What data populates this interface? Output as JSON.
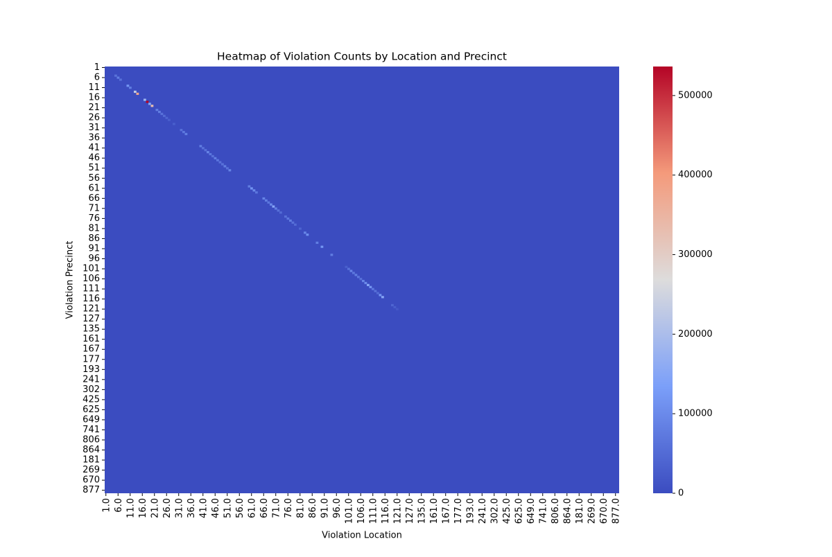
{
  "chart_data": {
    "type": "heatmap",
    "title": "Heatmap of Violation Counts by Location and Precinct",
    "x_label": "Violation Location",
    "y_label": "Violation Precinct",
    "x_categories": [
      "1.0",
      null,
      null,
      null,
      null,
      "6.0",
      null,
      null,
      null,
      null,
      "11.0",
      null,
      null,
      null,
      null,
      "16.0",
      null,
      null,
      null,
      null,
      "21.0",
      null,
      null,
      null,
      null,
      "26.0",
      null,
      null,
      null,
      null,
      "31.0",
      null,
      null,
      null,
      null,
      "36.0",
      null,
      null,
      null,
      null,
      "41.0",
      null,
      null,
      null,
      null,
      "46.0",
      null,
      null,
      null,
      null,
      "51.0",
      null,
      null,
      null,
      null,
      "56.0",
      null,
      null,
      null,
      null,
      "61.0",
      null,
      null,
      null,
      null,
      "66.0",
      null,
      null,
      null,
      null,
      "71.0",
      null,
      null,
      null,
      null,
      "76.0",
      null,
      null,
      null,
      null,
      "81.0",
      null,
      null,
      null,
      null,
      "86.0",
      null,
      null,
      null,
      null,
      "91.0",
      null,
      null,
      null,
      null,
      "96.0",
      null,
      null,
      null,
      null,
      "101.0",
      null,
      null,
      null,
      null,
      "106.0",
      null,
      null,
      null,
      null,
      "111.0",
      null,
      null,
      null,
      null,
      "116.0",
      null,
      null,
      null,
      null,
      "121.0",
      null,
      null,
      null,
      null,
      "127.0",
      null,
      null,
      null,
      null,
      "135.0",
      null,
      null,
      null,
      null,
      "161.0",
      null,
      null,
      null,
      null,
      "167.0",
      null,
      null,
      null,
      null,
      "177.0",
      null,
      null,
      null,
      null,
      "193.0",
      null,
      null,
      null,
      null,
      "241.0",
      null,
      null,
      null,
      null,
      "302.0",
      null,
      null,
      null,
      null,
      "425.0",
      null,
      null,
      null,
      null,
      "625.0",
      null,
      null,
      null,
      null,
      "649.0",
      null,
      null,
      null,
      null,
      "741.0",
      null,
      null,
      null,
      null,
      "806.0",
      null,
      null,
      null,
      null,
      "864.0",
      null,
      null,
      null,
      null,
      "181.0",
      null,
      null,
      null,
      null,
      "269.0",
      null,
      null,
      null,
      null,
      "670.0",
      null,
      null,
      null,
      null,
      "877.0",
      null
    ],
    "y_categories": [
      "1",
      null,
      null,
      null,
      null,
      "6",
      null,
      null,
      null,
      null,
      "11",
      null,
      null,
      null,
      null,
      "16",
      null,
      null,
      null,
      null,
      "21",
      null,
      null,
      null,
      null,
      "26",
      null,
      null,
      null,
      null,
      "31",
      null,
      null,
      null,
      null,
      "36",
      null,
      null,
      null,
      null,
      "41",
      null,
      null,
      null,
      null,
      "46",
      null,
      null,
      null,
      null,
      "51",
      null,
      null,
      null,
      null,
      "56",
      null,
      null,
      null,
      null,
      "61",
      null,
      null,
      null,
      null,
      "66",
      null,
      null,
      null,
      null,
      "71",
      null,
      null,
      null,
      null,
      "76",
      null,
      null,
      null,
      null,
      "81",
      null,
      null,
      null,
      null,
      "86",
      null,
      null,
      null,
      null,
      "91",
      null,
      null,
      null,
      null,
      "96",
      null,
      null,
      null,
      null,
      "101",
      null,
      null,
      null,
      null,
      "106",
      null,
      null,
      null,
      null,
      "111",
      null,
      null,
      null,
      null,
      "116",
      null,
      null,
      null,
      null,
      "121",
      null,
      null,
      null,
      null,
      "127",
      null,
      null,
      null,
      null,
      "135",
      null,
      null,
      null,
      null,
      "161",
      null,
      null,
      null,
      null,
      "167",
      null,
      null,
      null,
      null,
      "177",
      null,
      null,
      null,
      null,
      "193",
      null,
      null,
      null,
      null,
      "241",
      null,
      null,
      null,
      null,
      "302",
      null,
      null,
      null,
      null,
      "425",
      null,
      null,
      null,
      null,
      "625",
      null,
      null,
      null,
      null,
      "649",
      null,
      null,
      null,
      null,
      "741",
      null,
      null,
      null,
      null,
      "806",
      null,
      null,
      null,
      null,
      "864",
      null,
      null,
      null,
      null,
      "181",
      null,
      null,
      null,
      null,
      "269",
      null,
      null,
      null,
      null,
      "670",
      null,
      null,
      null,
      null,
      "877",
      null
    ],
    "fill_value": 0,
    "cells": [
      [
        4,
        4,
        60000
      ],
      [
        5,
        5,
        80000
      ],
      [
        6,
        6,
        60000
      ],
      [
        9,
        9,
        120000
      ],
      [
        10,
        10,
        80000
      ],
      [
        12,
        12,
        230000
      ],
      [
        13,
        13,
        380000
      ],
      [
        16,
        16,
        180000
      ],
      [
        17,
        17,
        536500
      ],
      [
        18,
        18,
        150000
      ],
      [
        19,
        19,
        330000
      ],
      [
        21,
        21,
        80000
      ],
      [
        22,
        22,
        80000
      ],
      [
        23,
        23,
        60000
      ],
      [
        24,
        24,
        50000
      ],
      [
        25,
        25,
        40000
      ],
      [
        26,
        26,
        30000
      ],
      [
        28,
        28,
        30000
      ],
      [
        31,
        31,
        60000
      ],
      [
        32,
        32,
        70000
      ],
      [
        33,
        33,
        80000
      ],
      [
        39,
        39,
        80000
      ],
      [
        40,
        40,
        60000
      ],
      [
        41,
        41,
        60000
      ],
      [
        42,
        42,
        90000
      ],
      [
        43,
        43,
        70000
      ],
      [
        44,
        44,
        60000
      ],
      [
        45,
        45,
        80000
      ],
      [
        46,
        46,
        70000
      ],
      [
        47,
        47,
        60000
      ],
      [
        48,
        48,
        60000
      ],
      [
        49,
        49,
        80000
      ],
      [
        50,
        50,
        60000
      ],
      [
        51,
        51,
        90000
      ],
      [
        59,
        59,
        80000
      ],
      [
        60,
        60,
        120000
      ],
      [
        61,
        61,
        100000
      ],
      [
        62,
        62,
        70000
      ],
      [
        65,
        65,
        90000
      ],
      [
        66,
        66,
        80000
      ],
      [
        67,
        67,
        70000
      ],
      [
        68,
        68,
        100000
      ],
      [
        69,
        69,
        150000
      ],
      [
        70,
        70,
        80000
      ],
      [
        71,
        71,
        60000
      ],
      [
        72,
        72,
        50000
      ],
      [
        74,
        74,
        60000
      ],
      [
        75,
        75,
        70000
      ],
      [
        76,
        76,
        80000
      ],
      [
        77,
        77,
        60000
      ],
      [
        78,
        78,
        50000
      ],
      [
        80,
        80,
        40000
      ],
      [
        82,
        82,
        90000
      ],
      [
        83,
        83,
        110000
      ],
      [
        87,
        87,
        80000
      ],
      [
        89,
        89,
        120000
      ],
      [
        93,
        93,
        80000
      ],
      [
        99,
        99,
        30000
      ],
      [
        100,
        100,
        60000
      ],
      [
        101,
        101,
        90000
      ],
      [
        102,
        102,
        70000
      ],
      [
        103,
        103,
        80000
      ],
      [
        104,
        104,
        70000
      ],
      [
        105,
        105,
        60000
      ],
      [
        106,
        106,
        90000
      ],
      [
        107,
        107,
        100000
      ],
      [
        108,
        108,
        150000
      ],
      [
        109,
        109,
        120000
      ],
      [
        110,
        110,
        70000
      ],
      [
        111,
        111,
        60000
      ],
      [
        112,
        112,
        50000
      ],
      [
        113,
        113,
        120000
      ],
      [
        114,
        114,
        150000
      ],
      [
        118,
        118,
        40000
      ],
      [
        119,
        119,
        30000
      ],
      [
        120,
        120,
        20000
      ]
    ],
    "clim": [
      0,
      536500
    ],
    "cticks": [
      0,
      100000,
      200000,
      300000,
      400000,
      500000
    ],
    "colormap": [
      "#3b4cc0",
      "#7b9ff9",
      "#dddcdc",
      "#f49a7b",
      "#b40426"
    ]
  }
}
